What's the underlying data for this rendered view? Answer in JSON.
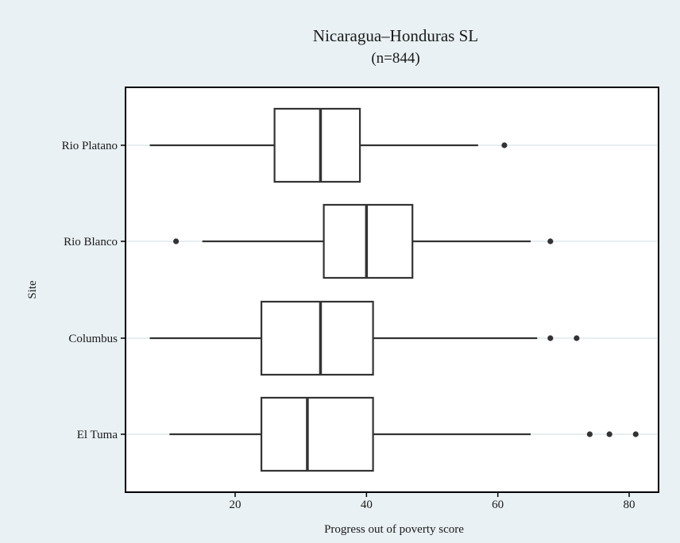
{
  "colors": {
    "outer_background": "#e9f1f4",
    "plot_background": "#ffffff",
    "title_color": "#1f3f52",
    "box_stroke": "#333333",
    "gridline": "#e6eef1",
    "outlier": "#333333"
  },
  "chart_data": {
    "type": "boxplot",
    "orientation": "horizontal",
    "title": "Nicaragua–Honduras SL",
    "subtitle": "(n=844)",
    "xlabel": "Progress out of poverty score",
    "ylabel": "Site",
    "xlim": [
      4,
      85
    ],
    "xticks": [
      20,
      40,
      60,
      80
    ],
    "grid": "horizontal lines at each category",
    "legend": "none",
    "categories": [
      "Rio Platano",
      "Rio Blanco",
      "Columbus",
      "El Tuma"
    ],
    "boxes": [
      {
        "category": "Rio Platano",
        "whisker_low": 7,
        "q1": 26,
        "median": 33,
        "q3": 39,
        "whisker_high": 57,
        "outliers": [
          61
        ]
      },
      {
        "category": "Rio Blanco",
        "whisker_low": 15,
        "q1": 33.5,
        "median": 40,
        "q3": 47,
        "whisker_high": 65,
        "outliers": [
          11,
          68
        ]
      },
      {
        "category": "Columbus",
        "whisker_low": 7,
        "q1": 24,
        "median": 33,
        "q3": 41,
        "whisker_high": 66,
        "outliers": [
          68,
          72
        ]
      },
      {
        "category": "El Tuma",
        "whisker_low": 10,
        "q1": 24,
        "median": 31,
        "q3": 41,
        "whisker_high": 65,
        "outliers": [
          74,
          77,
          81
        ]
      }
    ]
  }
}
